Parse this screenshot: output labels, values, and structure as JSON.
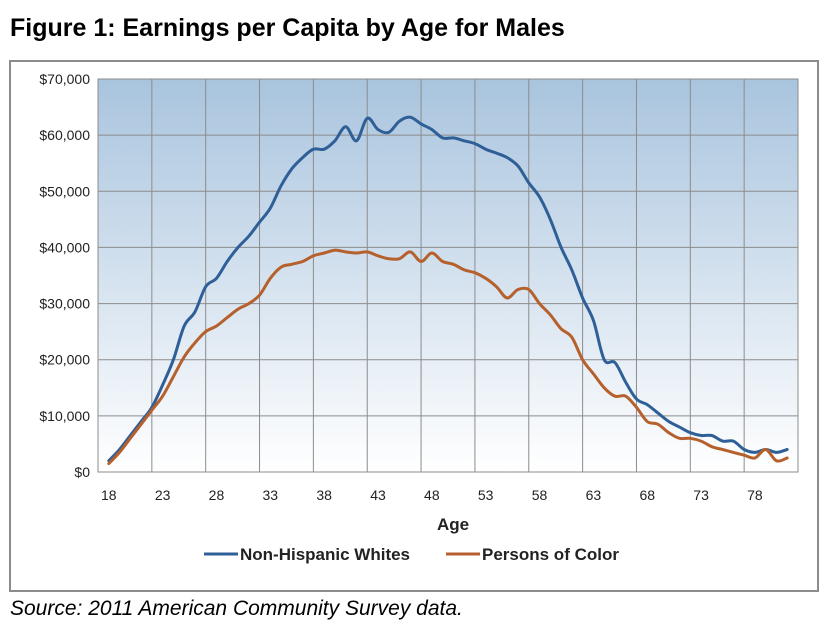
{
  "title": "Figure 1: Earnings per Capita by Age for Males",
  "source": "Source:  2011 American Community Survey data.",
  "colors": {
    "plot_top": "#a9c4de",
    "plot_bottom": "#ffffff",
    "grid": "#8c8c8c",
    "frame": "#8c8c8c"
  },
  "chart_data": {
    "type": "line",
    "title": "Figure 1: Earnings per Capita by Age for Males",
    "xlabel": "Age",
    "ylabel": "",
    "xlim": [
      17,
      82
    ],
    "ylim": [
      0,
      70000
    ],
    "x_ticks": [
      18,
      23,
      28,
      33,
      38,
      43,
      48,
      53,
      58,
      63,
      68,
      73,
      78
    ],
    "x_tick_labels": [
      "18",
      "23",
      "28",
      "33",
      "38",
      "43",
      "48",
      "53",
      "58",
      "63",
      "68",
      "73",
      "78"
    ],
    "y_ticks": [
      0,
      10000,
      20000,
      30000,
      40000,
      50000,
      60000,
      70000
    ],
    "y_tick_labels": [
      "$0",
      "$10,000",
      "$20,000",
      "$30,000",
      "$40,000",
      "$50,000",
      "$60,000",
      "$70,000"
    ],
    "grid": true,
    "legend_position": "bottom",
    "x": [
      18,
      19,
      20,
      21,
      22,
      23,
      24,
      25,
      26,
      27,
      28,
      29,
      30,
      31,
      32,
      33,
      34,
      35,
      36,
      37,
      38,
      39,
      40,
      41,
      42,
      43,
      44,
      45,
      46,
      47,
      48,
      49,
      50,
      51,
      52,
      53,
      54,
      55,
      56,
      57,
      58,
      59,
      60,
      61,
      62,
      63,
      64,
      65,
      66,
      67,
      68,
      69,
      70,
      71,
      72,
      73,
      74,
      75,
      76,
      77,
      78,
      79,
      80,
      81
    ],
    "series": [
      {
        "name": "Non-Hispanic Whites",
        "color": "#2f5f97",
        "values": [
          2000,
          4000,
          6500,
          9000,
          11500,
          15500,
          20000,
          26000,
          28500,
          33000,
          34500,
          37500,
          40000,
          42000,
          44500,
          47000,
          51000,
          54000,
          56000,
          57500,
          57500,
          59000,
          61500,
          59000,
          63000,
          61000,
          60500,
          62500,
          63200,
          62000,
          61000,
          59500,
          59500,
          59000,
          58500,
          57500,
          56800,
          56000,
          54500,
          51500,
          49000,
          45000,
          40000,
          36000,
          31000,
          27000,
          20000,
          19500,
          16000,
          13000,
          12000,
          10500,
          9000,
          8000,
          7000,
          6500,
          6500,
          5500,
          5500,
          4000,
          3500,
          4000,
          3500,
          4000
        ]
      },
      {
        "name": "Persons of Color",
        "color": "#b5602d",
        "values": [
          1500,
          3500,
          6000,
          8500,
          11000,
          13500,
          17000,
          20500,
          23000,
          25000,
          26000,
          27500,
          29000,
          30000,
          31500,
          34500,
          36500,
          37000,
          37500,
          38500,
          39000,
          39500,
          39200,
          39000,
          39200,
          38500,
          38000,
          38000,
          39200,
          37500,
          39000,
          37500,
          37000,
          36000,
          35500,
          34500,
          33000,
          31000,
          32500,
          32500,
          30000,
          28000,
          25500,
          24000,
          20000,
          17500,
          15000,
          13500,
          13500,
          11500,
          9000,
          8500,
          7000,
          6000,
          6000,
          5500,
          4500,
          4000,
          3500,
          3000,
          2500,
          4000,
          2000,
          2500
        ]
      }
    ]
  }
}
